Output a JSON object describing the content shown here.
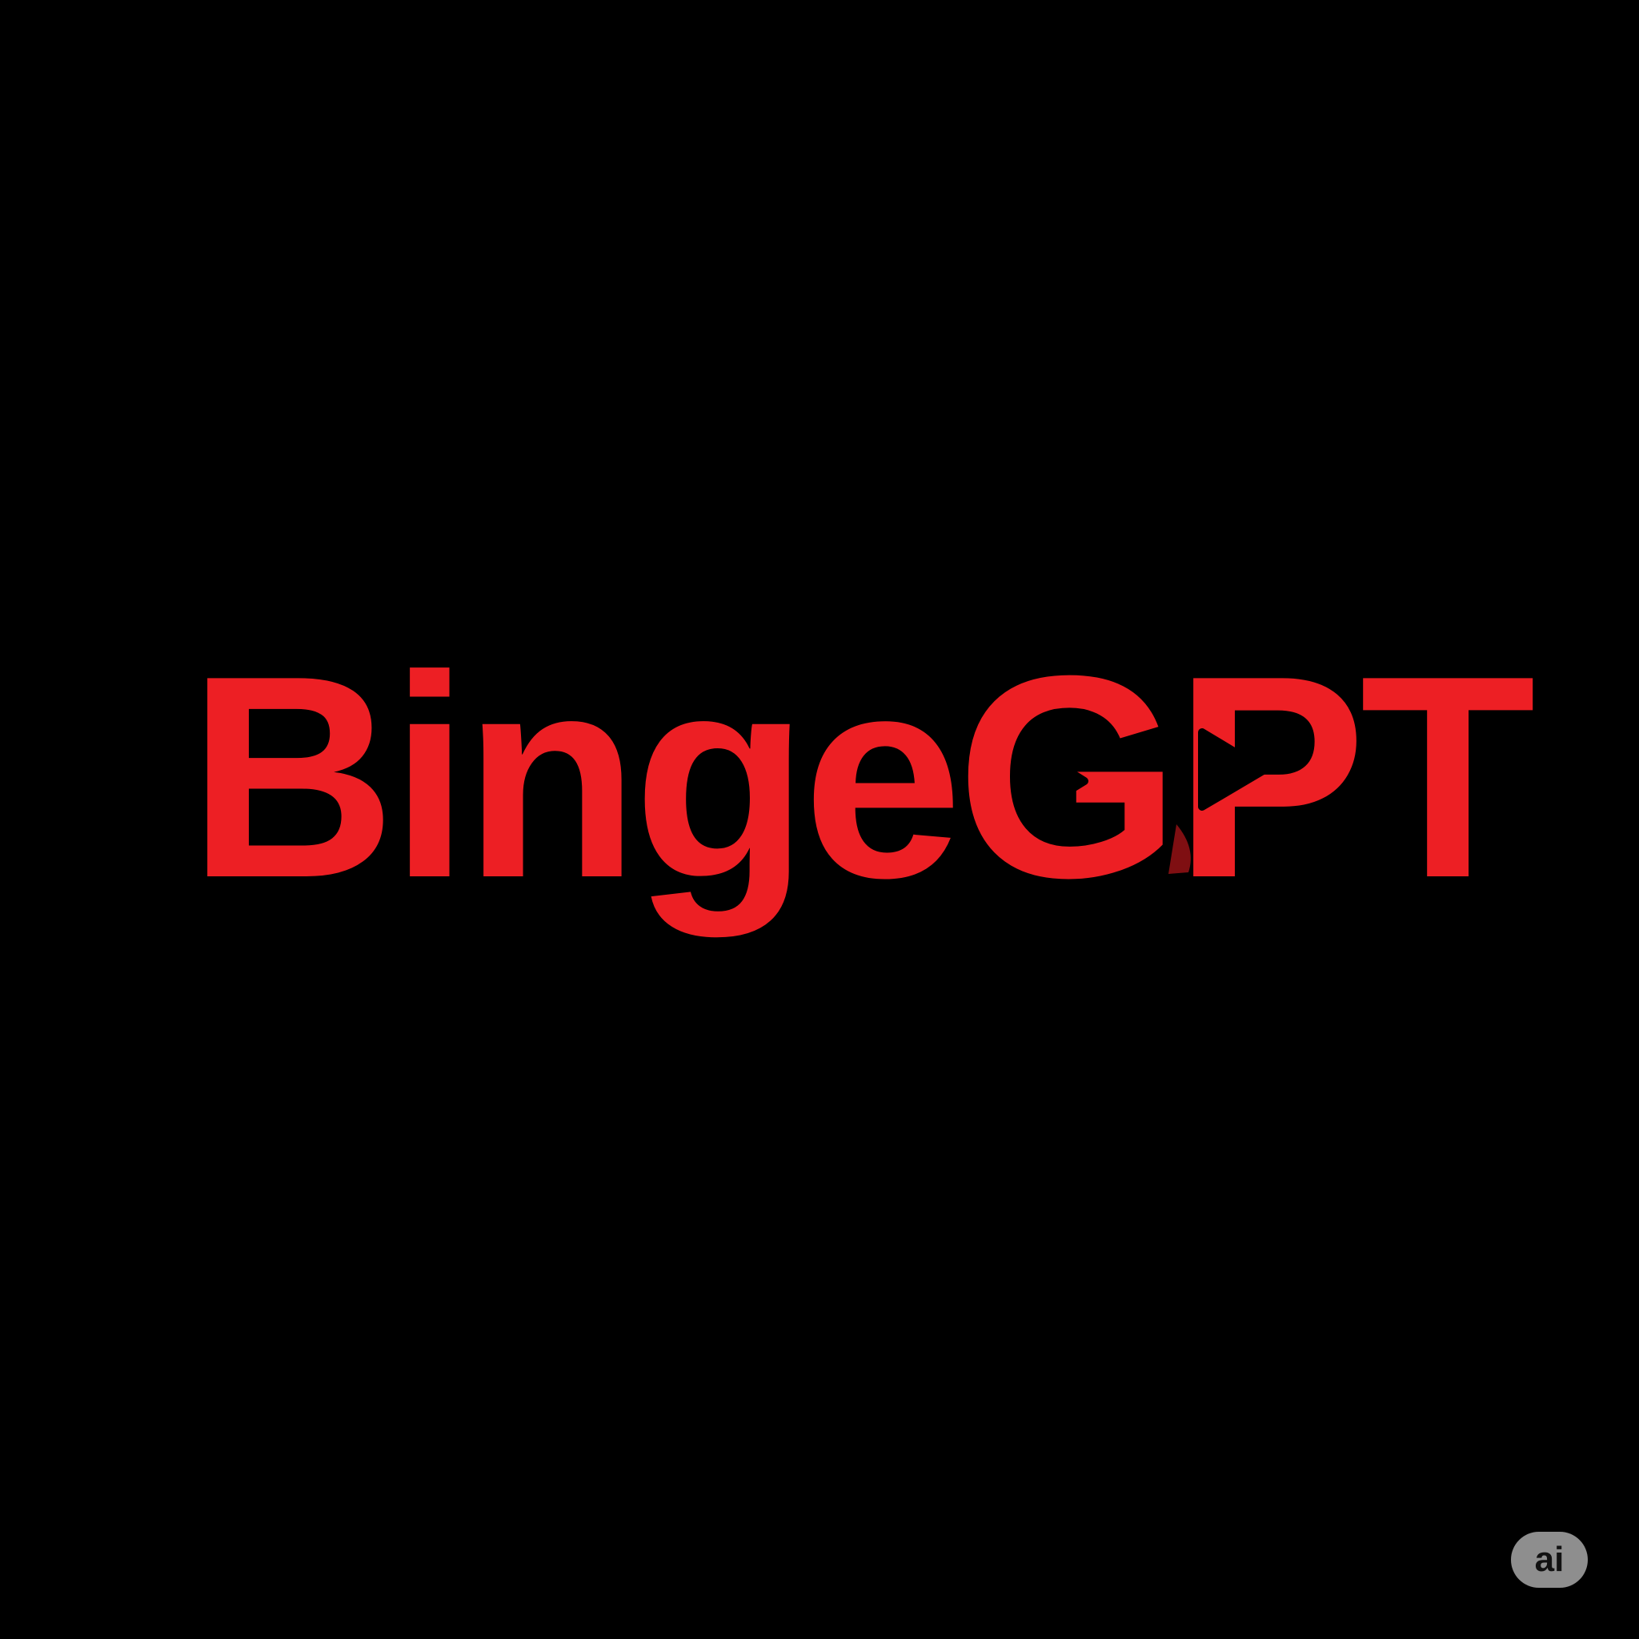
{
  "logo": {
    "wordmark": "BingeGPT",
    "brand_color": "#ed1f24",
    "background_color": "#000000",
    "play_icons": [
      "play-icon",
      "play-icon"
    ]
  },
  "badge": {
    "label": "ai",
    "color": "#8e8e8e"
  }
}
